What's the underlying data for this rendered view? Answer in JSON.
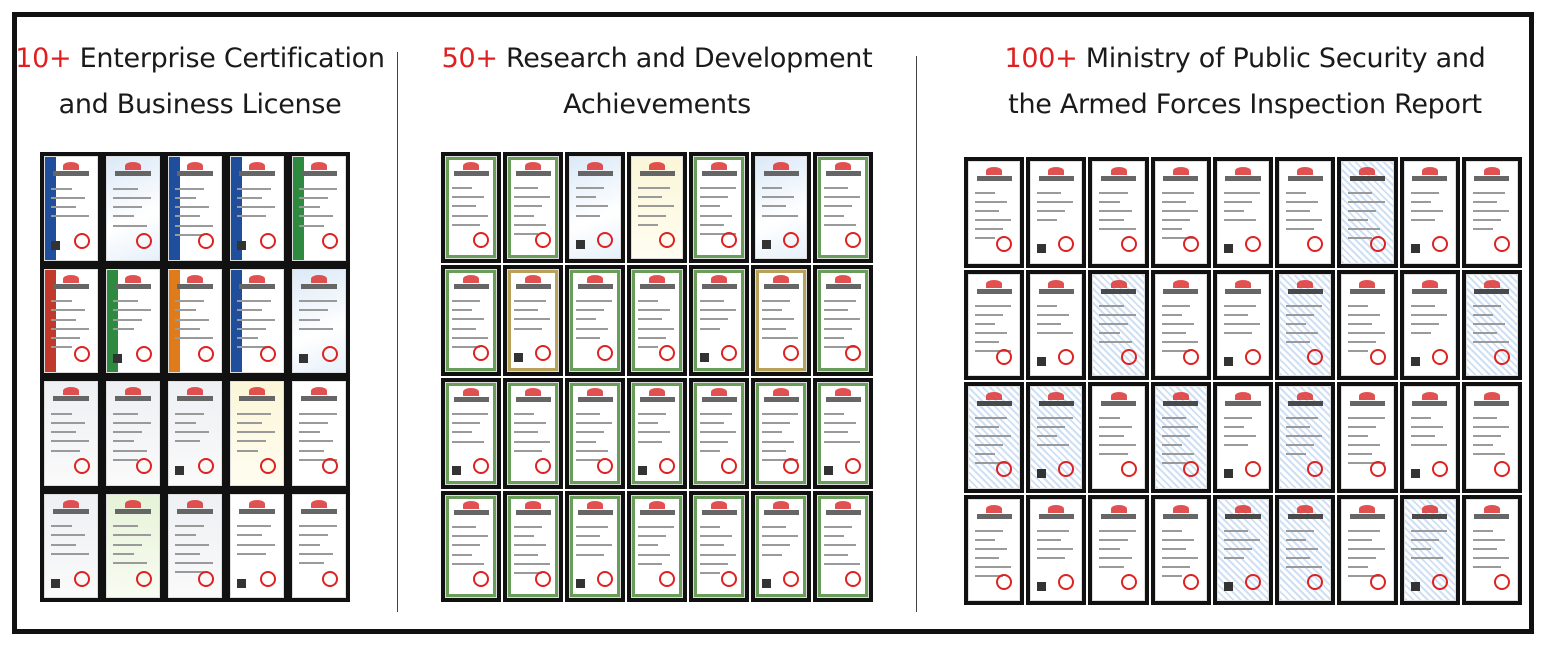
{
  "sections": [
    {
      "count": "10+",
      "title_line1": "Enterprise Certification",
      "title_line2": "and Business License",
      "grid": {
        "rows": 4,
        "cols": 5
      },
      "styles": [
        "blueband",
        "blue",
        "blueband",
        "blueband",
        "greenband",
        "redband",
        "greenband",
        "orangeband",
        "blueband",
        "blue",
        "grey",
        "grey",
        "grey",
        "yellow",
        "plain",
        "grey",
        "green",
        "grey",
        "plain",
        "plain"
      ]
    },
    {
      "count": "50+",
      "title_line1": "Research and Development",
      "title_line2": "Achievements",
      "grid": {
        "rows": 4,
        "cols": 7
      },
      "styles": [
        "framed",
        "framed",
        "blue",
        "yellow",
        "framed",
        "blue",
        "framed",
        "framed",
        "framed2",
        "framed",
        "framed",
        "framed",
        "framed2",
        "framed",
        "framed",
        "framed",
        "framed",
        "framed",
        "framed",
        "framed",
        "framed",
        "framed",
        "framed",
        "framed",
        "framed",
        "framed",
        "framed",
        "framed"
      ]
    },
    {
      "count": "100+",
      "title_line1": "Ministry of Public Security and",
      "title_line2": "the Armed Forces Inspection Report",
      "grid": {
        "rows": 4,
        "cols": 9
      },
      "styles": [
        "plain",
        "plain",
        "plain",
        "plain",
        "plain",
        "plain",
        "noise",
        "plain",
        "plain",
        "plain",
        "plain",
        "noise",
        "plain",
        "plain",
        "noise",
        "plain",
        "plain",
        "noise",
        "noise",
        "noise",
        "plain",
        "noise",
        "plain",
        "noise",
        "plain",
        "plain",
        "plain",
        "plain",
        "plain",
        "plain",
        "plain",
        "noise",
        "noise",
        "plain",
        "noise",
        "plain"
      ]
    }
  ],
  "colors": {
    "accent": "#e02020",
    "text": "#1a1a1a",
    "frame": "#111111"
  }
}
